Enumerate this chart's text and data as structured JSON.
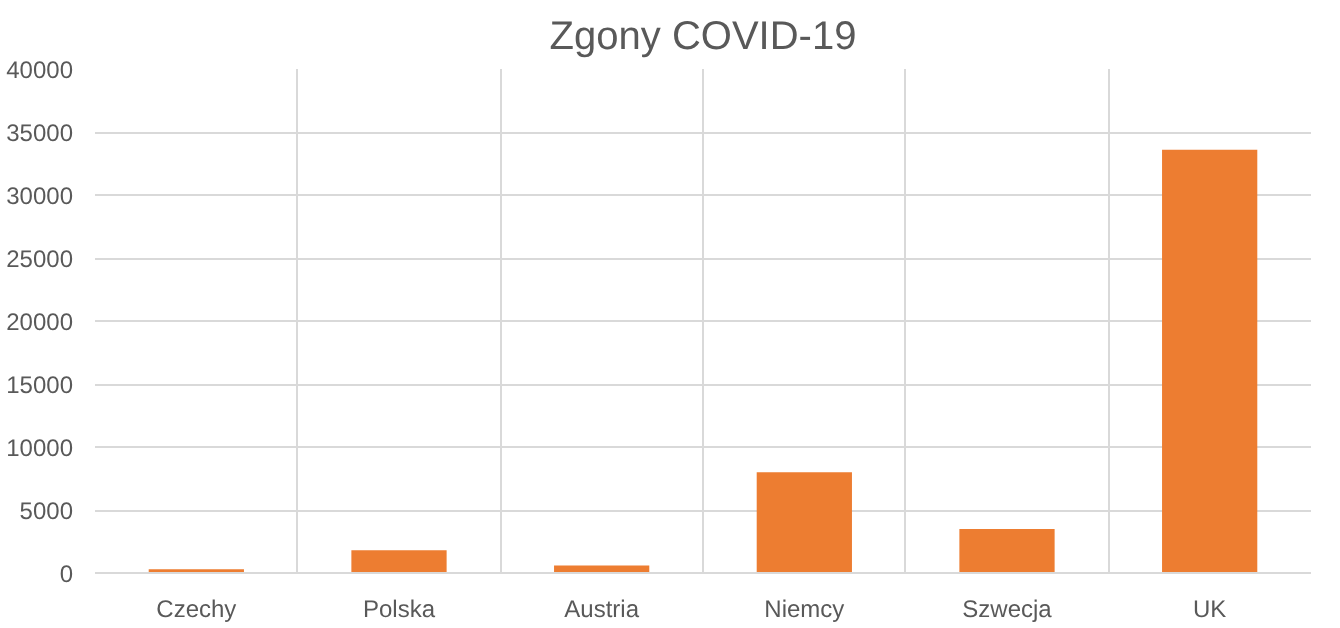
{
  "chart_data": {
    "type": "bar",
    "title": "Zgony COVID-19",
    "categories": [
      "Czechy",
      "Polska",
      "Austria",
      "Niemcy",
      "Szwecja",
      "UK"
    ],
    "values": [
      300,
      1800,
      600,
      8000,
      3500,
      33600
    ],
    "color": "#ed7d31",
    "ylim": [
      0,
      40000
    ],
    "yticks": [
      0,
      5000,
      10000,
      15000,
      20000,
      25000,
      30000,
      35000,
      40000
    ],
    "grid": true
  }
}
